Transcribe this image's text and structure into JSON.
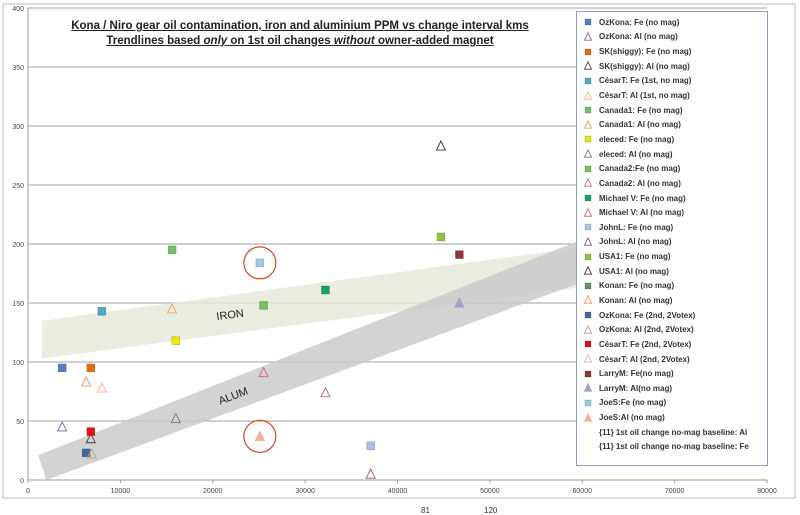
{
  "chart_data": {
    "type": "scatter",
    "title": "Kona / Niro gear oil contamination,  iron and aluminium  PPM vs change interval kms",
    "subtitle_parts": [
      "Trendlines based ",
      "only",
      " on 1st oil changes ",
      "without",
      " owner-added magnet"
    ],
    "xlim": [
      0,
      80000
    ],
    "ylim": [
      0,
      400
    ],
    "x_ticks": [
      "0",
      "10000",
      "20000",
      "30000",
      "40000",
      "50000",
      "60000",
      "70000",
      "80000"
    ],
    "y_ticks": [
      "0",
      "50",
      "100",
      "150",
      "200",
      "250",
      "300",
      "350",
      "400"
    ],
    "grid": "horizontal",
    "legend_position": "right",
    "series": [
      {
        "name": "OzKona: Fe (no mag)",
        "marker": "square",
        "color": "#4f81bd",
        "points": [
          [
            3700,
            95
          ]
        ]
      },
      {
        "name": "OzKona: Al (no mag)",
        "marker": "triangle",
        "color": "#8064a2",
        "points": [
          [
            3700,
            45
          ]
        ]
      },
      {
        "name": "SK(shiggy): Fe (no mag)",
        "marker": "square",
        "color": "#e46c0a",
        "points": [
          [
            6800,
            95
          ]
        ]
      },
      {
        "name": "SK(shiggy): Al (no mag)",
        "marker": "triangle",
        "color": "#404040",
        "points": [
          [
            6800,
            35
          ]
        ]
      },
      {
        "name": "CésarT: Fe (1st, no mag)",
        "marker": "square",
        "color": "#4bacc6",
        "points": [
          [
            8000,
            143
          ]
        ]
      },
      {
        "name": "CésarT: Al (1st, no mag)",
        "marker": "triangle",
        "color": "#f9b08a",
        "points": [
          [
            8000,
            78
          ]
        ]
      },
      {
        "name": "Canada1: Fe (no mag)",
        "marker": "square",
        "color": "#77c16a",
        "points": [
          [
            15600,
            195
          ]
        ]
      },
      {
        "name": "Canada1: Al (no mag)",
        "marker": "triangle",
        "color": "#f0a060",
        "points": [
          [
            15600,
            145
          ]
        ]
      },
      {
        "name": "eleced: Fe (no mag)",
        "marker": "square",
        "color": "#e8e800",
        "points": [
          [
            16000,
            118
          ]
        ]
      },
      {
        "name": "eleced: Al (no mag)",
        "marker": "triangle",
        "color": "#7070a0",
        "points": [
          [
            16000,
            52
          ]
        ]
      },
      {
        "name": "Canada2:Fe (no mag)",
        "marker": "square",
        "color": "#7dbe5a",
        "points": [
          [
            25500,
            148
          ]
        ]
      },
      {
        "name": "Canada2: Al (no mag)",
        "marker": "triangle",
        "color": "#c07070",
        "points": [
          [
            25500,
            91
          ]
        ]
      },
      {
        "name": "Michael V: Fe (no mag)",
        "marker": "square",
        "color": "#1fa060",
        "points": [
          [
            32200,
            161
          ]
        ]
      },
      {
        "name": "Michael V: Al (no mag)",
        "marker": "triangle",
        "color": "#c06070",
        "points": [
          [
            32200,
            74
          ]
        ]
      },
      {
        "name": "JohnL: Fe (no mag)",
        "marker": "square",
        "color": "#a9c0e8",
        "points": [
          [
            37100,
            29
          ]
        ]
      },
      {
        "name": "JohnL: Al (no mag)",
        "marker": "triangle",
        "color": "#8a5a7a",
        "points": [
          [
            37100,
            5
          ]
        ]
      },
      {
        "name": "USA1: Fe (no mag)",
        "marker": "square",
        "color": "#8fc43c",
        "points": [
          [
            44700,
            206
          ]
        ]
      },
      {
        "name": "USA1: Al (no mag)",
        "marker": "triangle",
        "color": "#303030",
        "points": [
          [
            44700,
            283
          ]
        ]
      },
      {
        "name": "Konan: Fe (no mag)",
        "marker": "square",
        "color": "#6f8f5f",
        "points": []
      },
      {
        "name": "Konan: Al (no mag)",
        "marker": "triangle",
        "color": "#e09070",
        "points": [
          [
            6300,
            83
          ]
        ]
      },
      {
        "name": "OzKona: Fe (2nd, 2Votex)",
        "marker": "square",
        "color": "#3c6aa0",
        "points": [
          [
            6300,
            23
          ]
        ]
      },
      {
        "name": "OzKona: Al (2nd, 2Votex)",
        "marker": "triangle",
        "color": "#c0a080",
        "points": [
          [
            6900,
            22
          ]
        ]
      },
      {
        "name": "CésarT: Fe (2nd, 2Votex)",
        "marker": "square",
        "color": "#e01010",
        "points": [
          [
            6800,
            41
          ]
        ]
      },
      {
        "name": "CésarT: Al (2nd, 2Votex)",
        "marker": "triangle",
        "color": "#d8b0c8",
        "points": []
      },
      {
        "name": "LarryM: Fe(no mag)",
        "marker": "square",
        "color": "#963232",
        "points": [
          [
            46700,
            191
          ]
        ]
      },
      {
        "name": "LarryM: Al(no mag)",
        "marker": "triangle-filled",
        "color": "#a0a0c8",
        "points": [
          [
            46700,
            150
          ]
        ]
      },
      {
        "name": "JoeS:Fe (no mag)",
        "marker": "square",
        "color": "#9fcde0",
        "points": [
          [
            25100,
            184
          ]
        ]
      },
      {
        "name": "JoeS:Al (no mag)",
        "marker": "triangle-filled",
        "color": "#f4b090",
        "points": [
          [
            25100,
            37
          ]
        ]
      },
      {
        "name": "{11} 1st oil change no-mag baseline: Al",
        "marker": "none",
        "color": "#bfbfbf",
        "points": []
      },
      {
        "name": "{11} 1st oil change no-mag baseline: Fe",
        "marker": "none",
        "color": "#e4e8d8",
        "points": []
      }
    ],
    "trend_bands": [
      {
        "label": "IRON",
        "color": "#e4e8d8",
        "lower": [
          [
            1500,
            103
          ],
          [
            59700,
            163
          ]
        ],
        "upper": [
          [
            1500,
            135
          ],
          [
            59700,
            197
          ]
        ]
      },
      {
        "label": "ALUM",
        "color": "#c8c8c8",
        "lower": [
          [
            2000,
            0
          ],
          [
            59700,
            167
          ]
        ],
        "upper": [
          [
            1100,
            21
          ],
          [
            59700,
            203
          ]
        ]
      }
    ],
    "highlight_circles": [
      [
        25100,
        184
      ],
      [
        25100,
        37
      ]
    ],
    "highlight_color": "#e04020"
  },
  "footer_fragments": [
    "81",
    "120"
  ]
}
